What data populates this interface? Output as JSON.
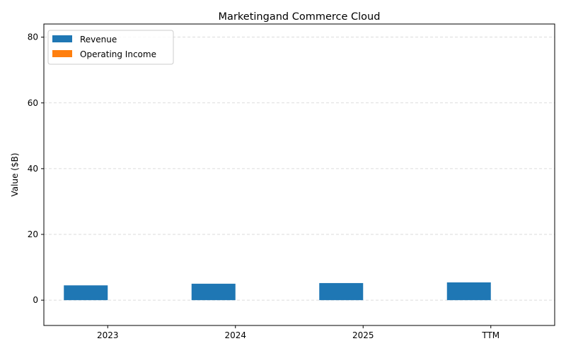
{
  "chart_data": {
    "type": "bar",
    "title": "Marketingand Commerce Cloud",
    "xlabel": "",
    "ylabel": "Value ($B)",
    "categories": [
      "2023",
      "2024",
      "2025",
      "TTM"
    ],
    "series": [
      {
        "name": "Revenue",
        "values": [
          4.5,
          5.0,
          5.2,
          5.4
        ],
        "color": "#1f77b4"
      },
      {
        "name": "Operating Income",
        "values": [
          0,
          0,
          0,
          0
        ],
        "color": "#ff7f0e"
      }
    ],
    "ylim": [
      -7.7,
      84
    ],
    "yticks": [
      0,
      20,
      40,
      60,
      80
    ],
    "grid": "y-dashed",
    "legend_position": "upper left"
  }
}
